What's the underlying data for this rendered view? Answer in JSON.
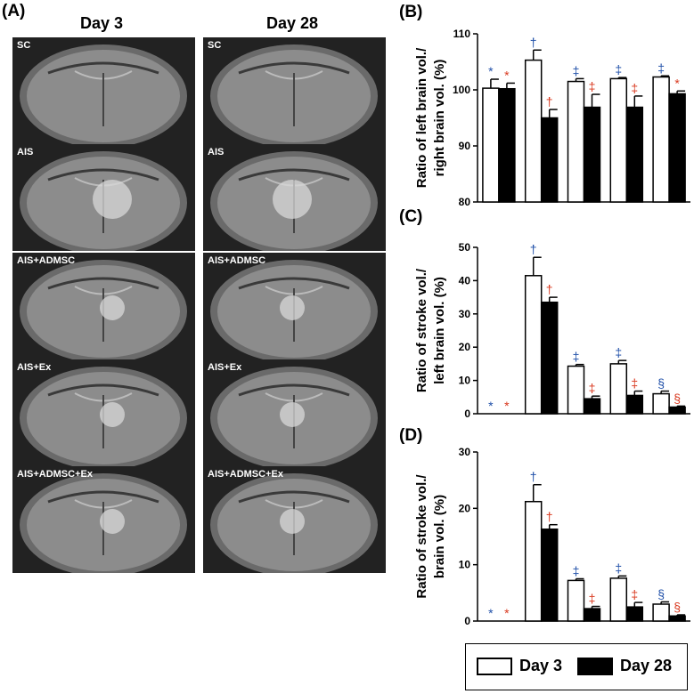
{
  "panelA": {
    "label": "(A)",
    "columns": [
      "Day 3",
      "Day 28"
    ],
    "rows": [
      "SC",
      "AIS",
      "AIS+ADMSC",
      "AIS+Ex",
      "AIS+ADMSC+Ex"
    ]
  },
  "legend": {
    "day3": "Day 3",
    "day28": "Day 28"
  },
  "colors": {
    "day3": "#ffffff",
    "day28": "#000000",
    "blue_mark": "#1f4fa8",
    "red_mark": "#d9381e"
  },
  "chart_data": [
    {
      "type": "bar",
      "panel": "(B)",
      "ylabel": "Ratio of left brain vol./ right brain vol. (%)",
      "ylabel_lines": [
        "Ratio of left brain vol./",
        "right brain vol. (%)"
      ],
      "ylim": [
        80,
        110
      ],
      "yticks": [
        80,
        90,
        100,
        110
      ],
      "groups": 5,
      "series": [
        {
          "name": "Day 3",
          "values": [
            100.3,
            105.3,
            101.5,
            102.0,
            102.3
          ],
          "errors": [
            1.6,
            1.8,
            0.5,
            0.2,
            0.2
          ],
          "marks": [
            "*",
            "†",
            "‡",
            "‡",
            "‡"
          ]
        },
        {
          "name": "Day 28",
          "values": [
            100.2,
            95.0,
            96.9,
            96.9,
            99.3
          ],
          "errors": [
            1.0,
            1.5,
            2.3,
            2.0,
            0.5
          ],
          "marks": [
            "*",
            "†",
            "‡",
            "‡",
            "*"
          ]
        }
      ]
    },
    {
      "type": "bar",
      "panel": "(C)",
      "ylabel": "Ratio of stroke vol./ left brain vol. (%)",
      "ylabel_lines": [
        "Ratio of stroke vol./",
        "left brain vol. (%)"
      ],
      "ylim": [
        0,
        50
      ],
      "yticks": [
        0,
        10,
        20,
        30,
        40,
        50
      ],
      "groups": 5,
      "series": [
        {
          "name": "Day 3",
          "values": [
            0,
            41.5,
            14.3,
            15.0,
            6.0
          ],
          "errors": [
            0,
            5.5,
            0.5,
            1.0,
            0.8
          ],
          "marks": [
            "*",
            "†",
            "‡",
            "‡",
            "§"
          ]
        },
        {
          "name": "Day 28",
          "values": [
            0,
            33.5,
            4.5,
            5.5,
            2.0
          ],
          "errors": [
            0,
            1.5,
            0.8,
            1.3,
            0.3
          ],
          "marks": [
            "*",
            "†",
            "‡",
            "‡",
            "§"
          ]
        }
      ]
    },
    {
      "type": "bar",
      "panel": "(D)",
      "ylabel": "Ratio of stroke vol./ brain vol. (%)",
      "ylabel_lines": [
        "Ratio of stroke vol./",
        "brain vol. (%)"
      ],
      "ylim": [
        0,
        30
      ],
      "yticks": [
        0,
        10,
        20,
        30
      ],
      "groups": 5,
      "series": [
        {
          "name": "Day 3",
          "values": [
            0,
            21.2,
            7.2,
            7.6,
            3.0
          ],
          "errors": [
            0,
            3.0,
            0.3,
            0.4,
            0.4
          ],
          "marks": [
            "*",
            "†",
            "‡",
            "‡",
            "§"
          ]
        },
        {
          "name": "Day 28",
          "values": [
            0,
            16.3,
            2.2,
            2.5,
            0.9
          ],
          "errors": [
            0,
            0.8,
            0.4,
            0.8,
            0.2
          ],
          "marks": [
            "*",
            "†",
            "‡",
            "‡",
            "§"
          ]
        }
      ]
    }
  ]
}
